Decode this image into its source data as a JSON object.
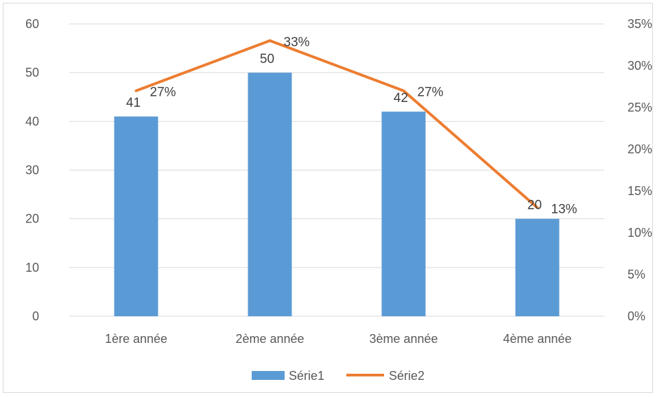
{
  "chart_data": {
    "type": "bar",
    "categories": [
      "1ère année",
      "2ème année",
      "3ème année",
      "4ème année"
    ],
    "series": [
      {
        "name": "Série1",
        "chart_type": "bar",
        "axis": "left",
        "values": [
          41,
          50,
          42,
          20
        ],
        "labels": [
          "41",
          "50",
          "42",
          "20"
        ],
        "color": "#5b9bd5"
      },
      {
        "name": "Série2",
        "chart_type": "line",
        "axis": "right",
        "values": [
          0.27,
          0.33,
          0.27,
          0.13
        ],
        "labels": [
          "27%",
          "33%",
          "27%",
          "13%"
        ],
        "color": "#ed7d31"
      }
    ],
    "y_left": {
      "min": 0,
      "max": 60,
      "ticks": [
        "0",
        "10",
        "20",
        "30",
        "40",
        "50",
        "60"
      ]
    },
    "y_right": {
      "min": 0,
      "max": 0.35,
      "ticks": [
        "0%",
        "5%",
        "10%",
        "15%",
        "20%",
        "25%",
        "30%",
        "35%"
      ]
    },
    "grid": true,
    "legend": "bottom"
  }
}
